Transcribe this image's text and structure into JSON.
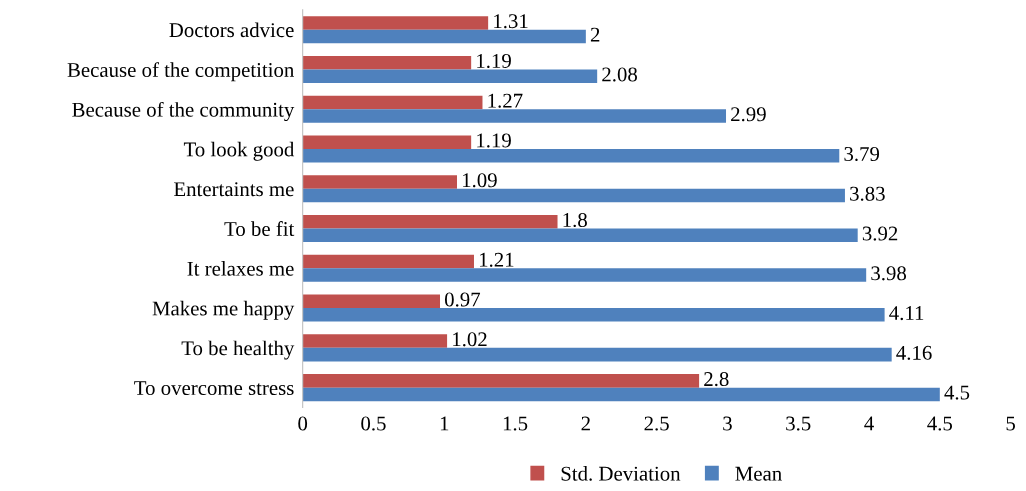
{
  "chart_data": {
    "type": "bar",
    "orientation": "horizontal",
    "categories": [
      "Doctors advice",
      "Because of the competition",
      "Because of the community",
      "To look good",
      "Entertaints me",
      "To be fit",
      "It relaxes me",
      "Makes me happy",
      "To be healthy",
      "To overcome stress"
    ],
    "series": [
      {
        "name": "Std. Deviation",
        "color": "#c0504d",
        "values": [
          1.31,
          1.19,
          1.27,
          1.19,
          1.09,
          1.8,
          1.21,
          0.97,
          1.02,
          2.8
        ]
      },
      {
        "name": "Mean",
        "color": "#4f81bd",
        "values": [
          2,
          2.08,
          2.99,
          3.79,
          3.83,
          3.92,
          3.98,
          4.11,
          4.16,
          4.5
        ]
      }
    ],
    "xlim": [
      0,
      5
    ],
    "xticks": [
      0,
      0.5,
      1,
      1.5,
      2,
      2.5,
      3,
      3.5,
      4,
      4.5,
      5
    ],
    "data_labels": true,
    "grid": false,
    "legend": "bottom"
  }
}
